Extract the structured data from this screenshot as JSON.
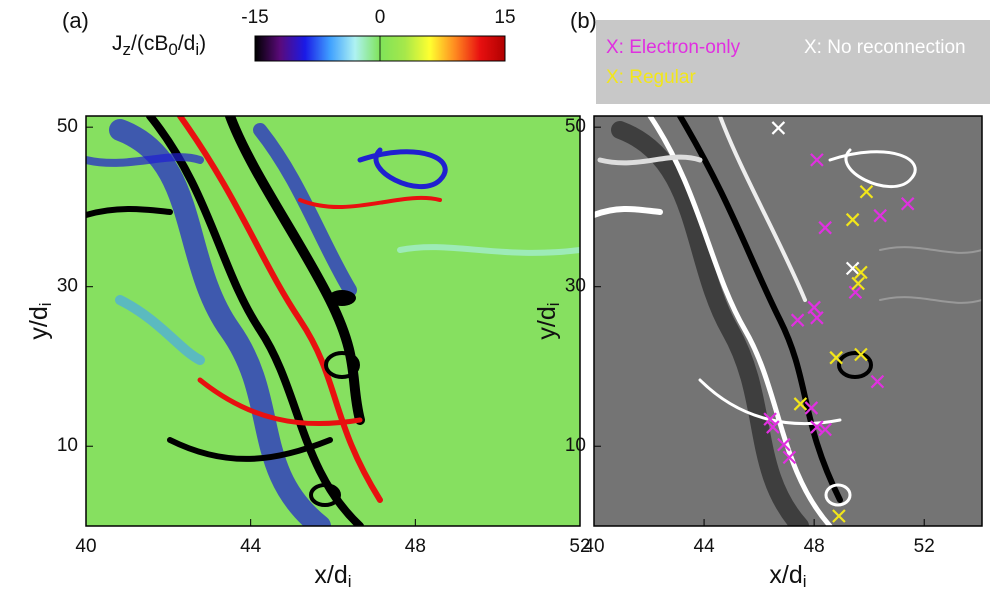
{
  "chart_data": [
    {
      "type": "heatmap",
      "panel_label": "(a)",
      "colorbar_label": [
        {
          "text": "J"
        },
        {
          "sub": "z"
        },
        {
          "text": "/(cB"
        },
        {
          "sub": "0"
        },
        {
          "text": "/d"
        },
        {
          "sub": "i"
        },
        {
          "text": ")"
        }
      ],
      "clim": [
        -15,
        15
      ],
      "colorbar_ticks": [
        -15,
        0,
        15
      ],
      "colormap": [
        "#000000",
        "#5a0a7a",
        "#1a1ae6",
        "#3fa0ff",
        "#aef2f2",
        "#7fe35a",
        "#a6e84a",
        "#ffff30",
        "#ff8a20",
        "#e81010",
        "#b00000"
      ],
      "x_label": [
        {
          "text": "x/d"
        },
        {
          "sub": "i"
        }
      ],
      "y_label": [
        {
          "text": "y/d"
        },
        {
          "sub": "i"
        }
      ],
      "xlim": [
        40,
        52
      ],
      "xticks": [
        40,
        44,
        48,
        52
      ],
      "ylim": [
        0,
        51.4
      ],
      "yticks": [
        10,
        30,
        50
      ]
    },
    {
      "type": "scatter",
      "panel_label": "(b)",
      "x_label": [
        {
          "text": "x/d"
        },
        {
          "sub": "i"
        }
      ],
      "y_label": [
        {
          "text": "y/d"
        },
        {
          "sub": "i"
        }
      ],
      "xlim": [
        40,
        54.1
      ],
      "xticks": [
        40,
        44,
        48,
        52
      ],
      "ylim": [
        0,
        51.4
      ],
      "yticks": [
        10,
        30,
        50
      ],
      "series": [
        {
          "name": "X: Electron-only",
          "color": "#e030e0",
          "x": [
            48.1,
            51.4,
            50.4,
            48.4,
            49.5,
            48.0,
            48.1,
            47.4,
            50.3,
            47.9,
            46.4,
            46.5,
            48.1,
            48.4,
            46.9,
            47.1
          ],
          "y": [
            45.9,
            40.4,
            38.9,
            37.4,
            29.3,
            27.4,
            26.1,
            25.8,
            18.1,
            14.8,
            13.4,
            12.4,
            12.4,
            12.1,
            10.2,
            8.6
          ]
        },
        {
          "name": "X: No reconnection",
          "color": "#ffffff",
          "x": [
            46.7,
            49.4
          ],
          "y": [
            49.9,
            32.3
          ]
        },
        {
          "name": "X: Regular",
          "color": "#f2e61a",
          "x": [
            49.9,
            49.4,
            49.7,
            49.6,
            48.8,
            49.7,
            47.5,
            48.9
          ],
          "y": [
            41.9,
            38.4,
            31.8,
            30.4,
            21.1,
            21.5,
            15.3,
            1.25
          ]
        }
      ]
    }
  ]
}
